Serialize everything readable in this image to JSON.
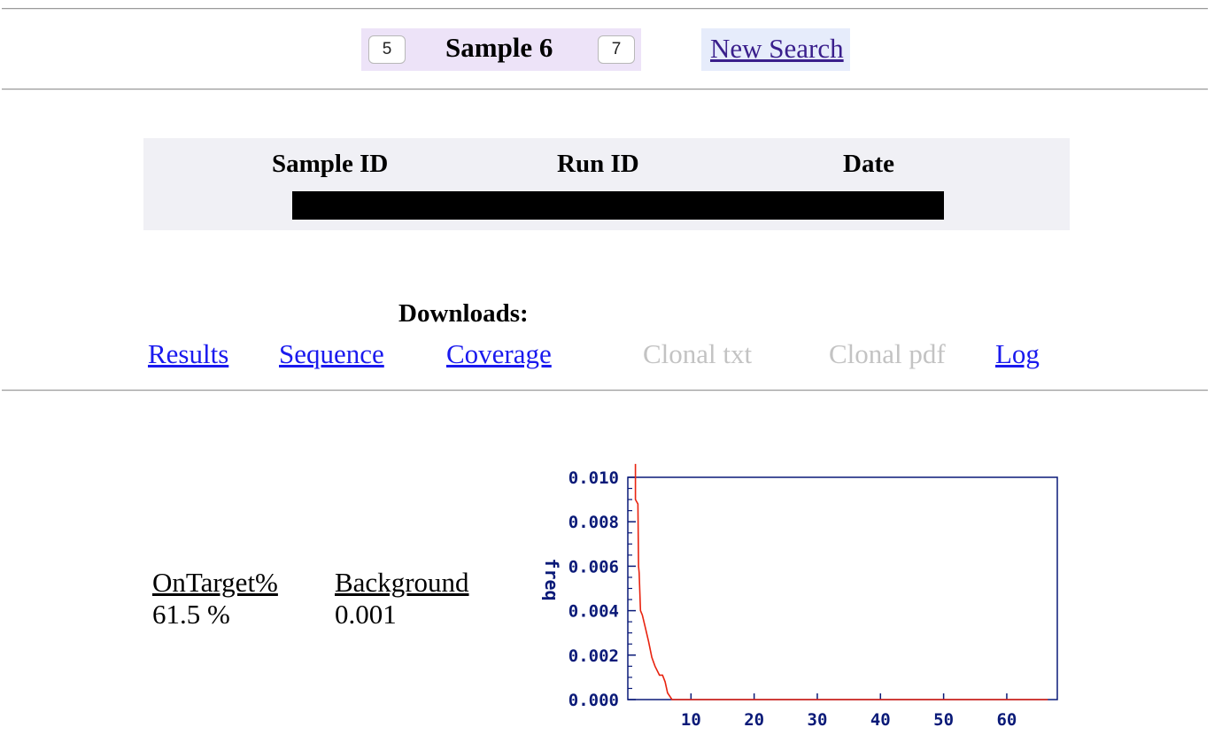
{
  "nav": {
    "prev_label": "5",
    "title": "Sample 6",
    "next_label": "7",
    "new_search_label": "New Search"
  },
  "info_table": {
    "headers": [
      "Sample ID",
      "Run ID",
      "Date"
    ]
  },
  "downloads": {
    "title": "Downloads:",
    "links": [
      {
        "label": "Results",
        "enabled": true
      },
      {
        "label": "Sequence",
        "enabled": true
      },
      {
        "label": "Coverage",
        "enabled": true
      },
      {
        "label": "Clonal txt",
        "enabled": false
      },
      {
        "label": "Clonal pdf",
        "enabled": false
      },
      {
        "label": "Log",
        "enabled": true
      }
    ]
  },
  "stats": {
    "on_target_label": "OnTarget%",
    "on_target_value": "61.5 %",
    "background_label": "Background",
    "background_value": "0.001"
  },
  "chart_data": {
    "type": "line",
    "title": "",
    "xlabel": "",
    "ylabel": "freq",
    "xlim": [
      0,
      68
    ],
    "ylim": [
      0,
      0.01
    ],
    "x_ticks": [
      10,
      20,
      30,
      40,
      50,
      60
    ],
    "y_ticks": [
      "0.000",
      "0.002",
      "0.004",
      "0.006",
      "0.008",
      "0.010"
    ],
    "grid": false,
    "line_color": "#e8230f",
    "axis_color": "#0a1a78",
    "series": [
      {
        "x": [
          1.2,
          1.2,
          1.6,
          1.7,
          1.8,
          2.0,
          2.3,
          2.8,
          3.3,
          3.8,
          4.3,
          5.0,
          5.5,
          5.9,
          6.3,
          7.0,
          10,
          20,
          30,
          40,
          50,
          60,
          66.5
        ],
        "values": [
          0.0106,
          0.009,
          0.0088,
          0.006,
          0.0057,
          0.004,
          0.0038,
          0.0032,
          0.0026,
          0.0019,
          0.0015,
          0.0011,
          0.0011,
          0.0008,
          0.0003,
          0.0,
          0.0,
          0.0,
          0.0,
          0.0,
          0.0,
          0.0,
          0.0
        ]
      }
    ]
  }
}
